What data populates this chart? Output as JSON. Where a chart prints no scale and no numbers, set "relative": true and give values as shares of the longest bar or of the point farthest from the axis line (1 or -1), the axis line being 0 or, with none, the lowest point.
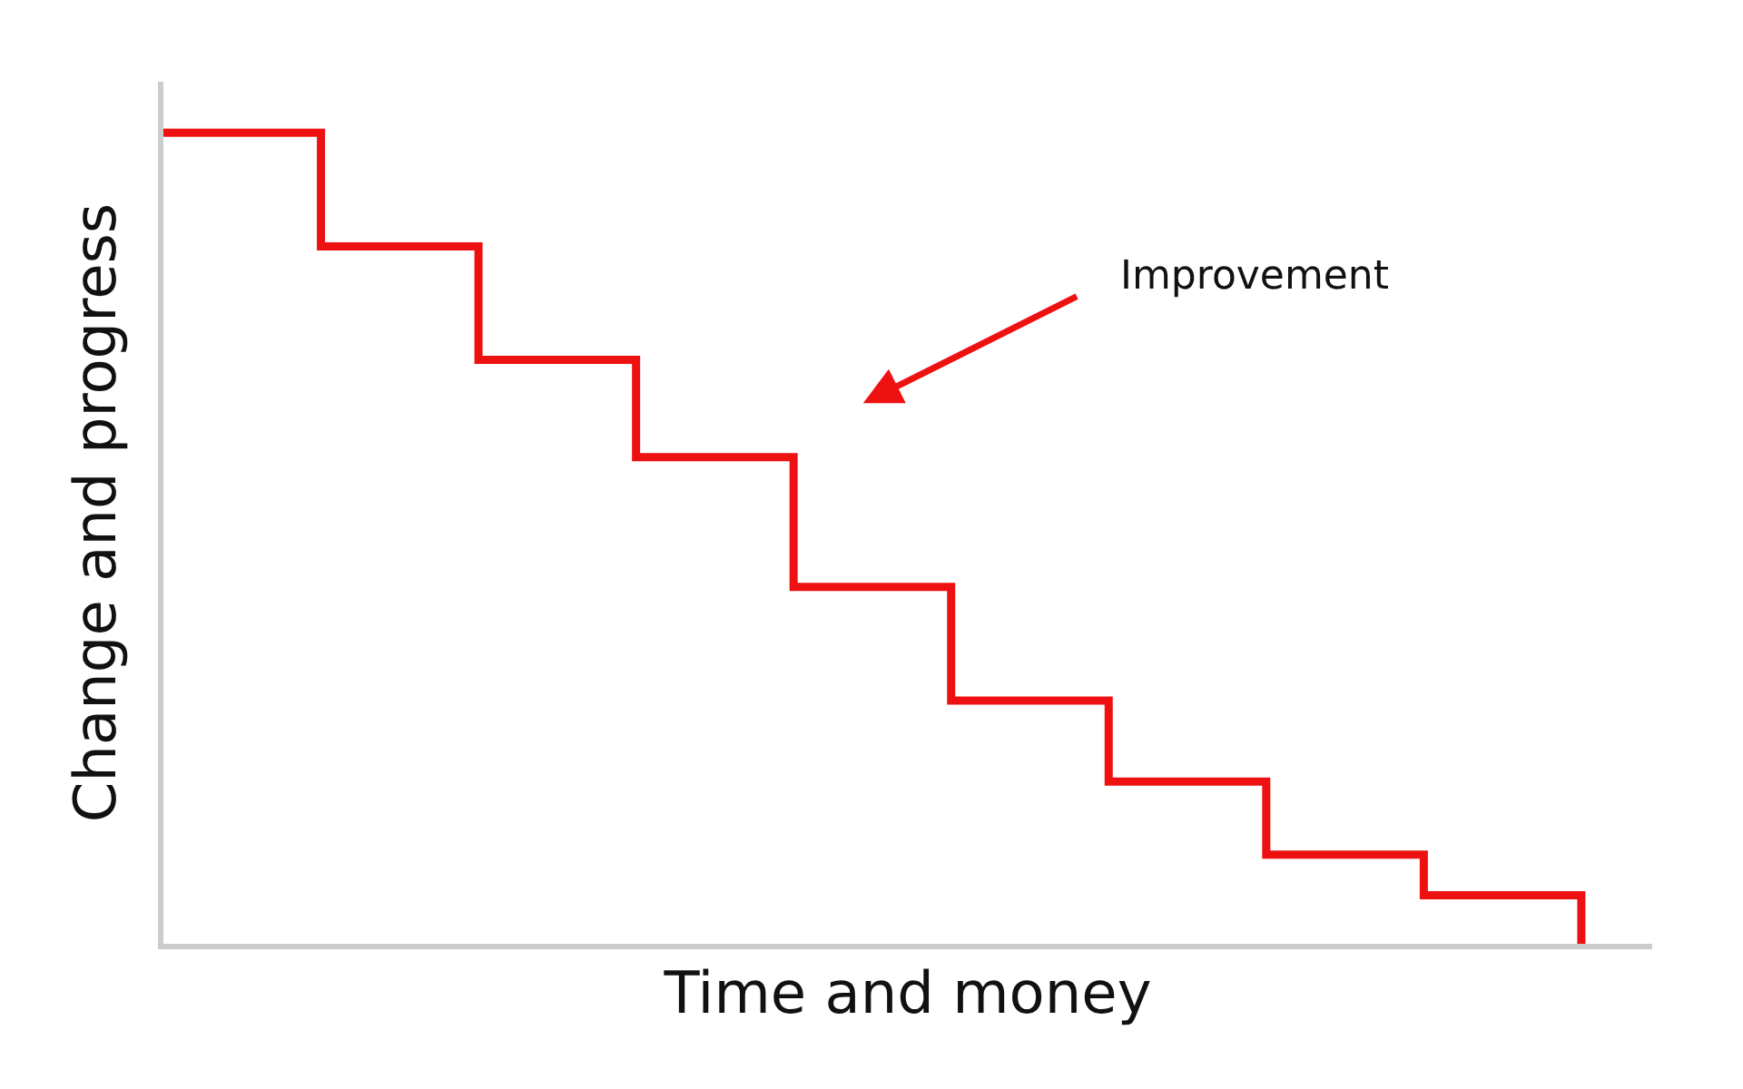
{
  "chart_data": {
    "type": "step",
    "relative": true,
    "xlabel": "Time and money",
    "ylabel": "Change and progress",
    "categories": [
      null,
      null,
      null,
      null,
      null,
      null,
      null,
      null,
      null,
      null
    ],
    "series": [
      {
        "color": "#ee1111",
        "values": [
          1.0,
          0.86,
          0.72,
          0.6,
          0.44,
          0.3,
          0.2,
          0.11,
          0.06,
          0.0
        ]
      }
    ],
    "annotations": [
      "Improvement"
    ],
    "legend": false,
    "tick_labels": false,
    "marker": "none",
    "line_style": "solid"
  }
}
